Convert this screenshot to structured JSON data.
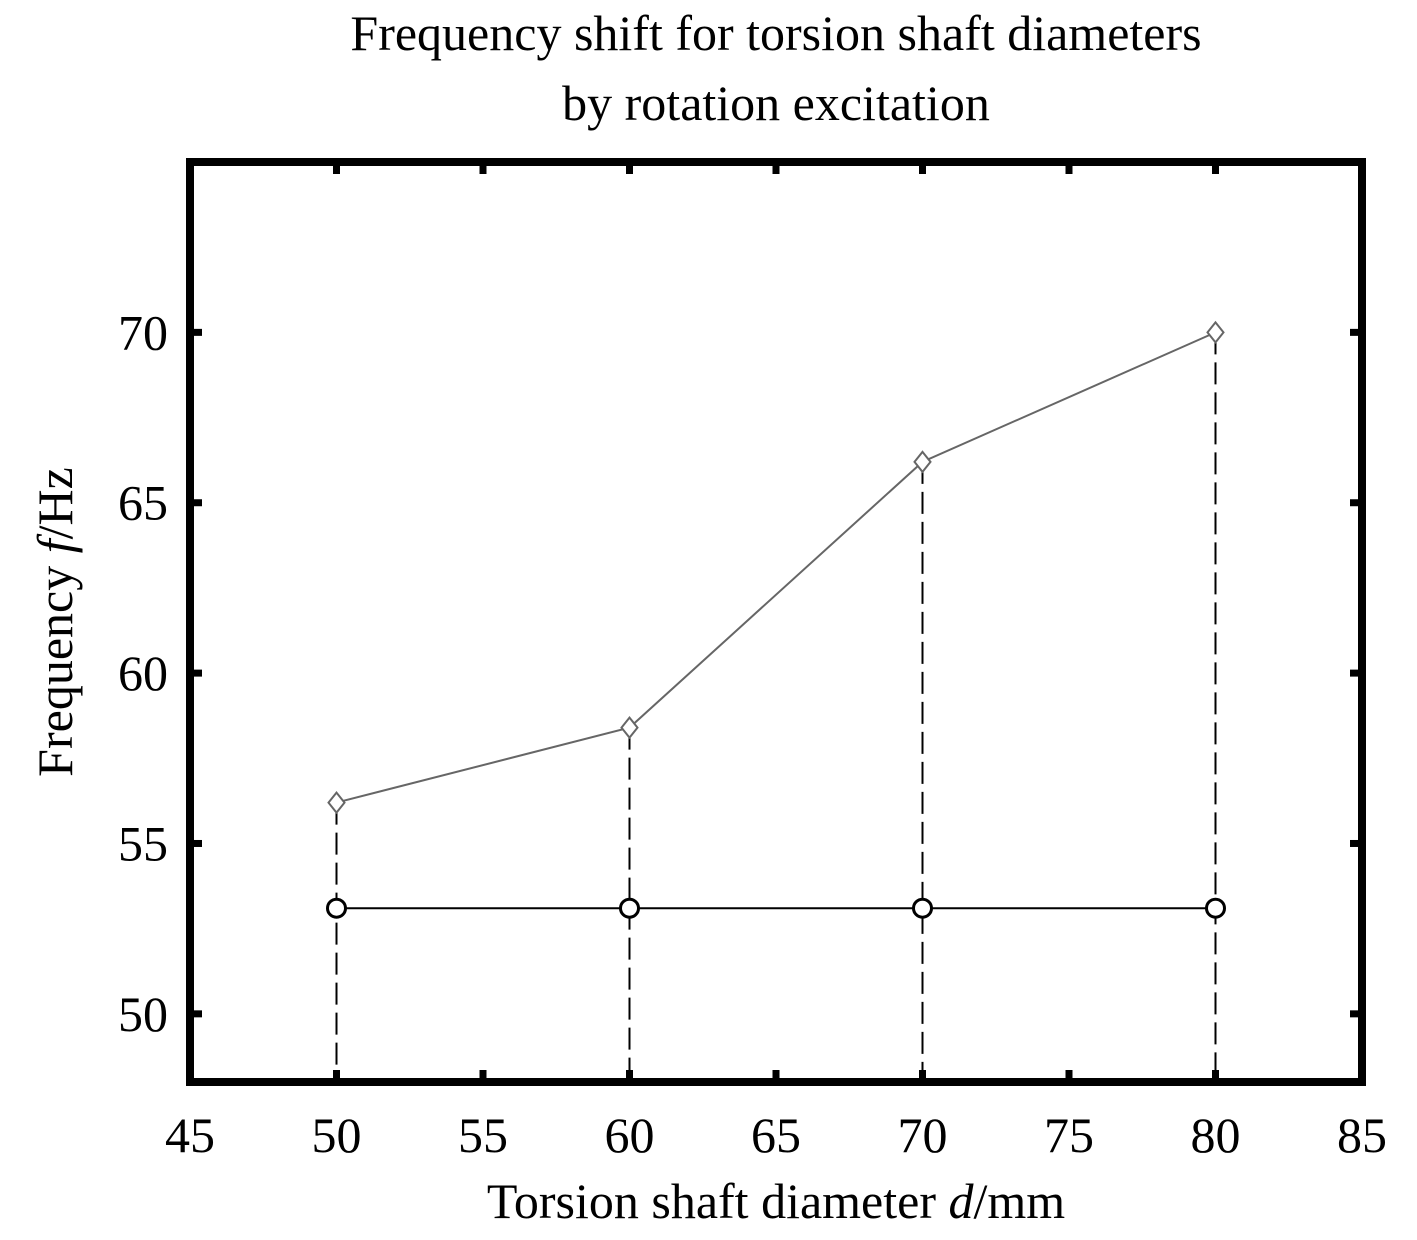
{
  "chart_data": {
    "type": "line",
    "title": [
      "Frequency shift for torsion shaft diameters",
      "by rotation excitation"
    ],
    "xlabel": {
      "pre": "Torsion shaft diameter ",
      "var": "d",
      "post": "/mm"
    },
    "ylabel": {
      "pre": "Frequency ",
      "var": "f",
      "post": "/Hz"
    },
    "xlim": [
      45,
      85
    ],
    "ylim": [
      48,
      75
    ],
    "xticks": [
      45,
      50,
      55,
      60,
      65,
      70,
      75,
      80,
      85
    ],
    "yticks": [
      50,
      55,
      60,
      65,
      70
    ],
    "x": [
      50,
      60,
      70,
      80
    ],
    "series": [
      {
        "marker": "diamond",
        "values": [
          56.2,
          58.4,
          66.2,
          70.0
        ],
        "color": "#666666"
      },
      {
        "marker": "circle",
        "values": [
          53.1,
          53.1,
          53.1,
          53.1
        ],
        "color": "#000000"
      }
    ],
    "drop_lines": true,
    "grid": false
  }
}
